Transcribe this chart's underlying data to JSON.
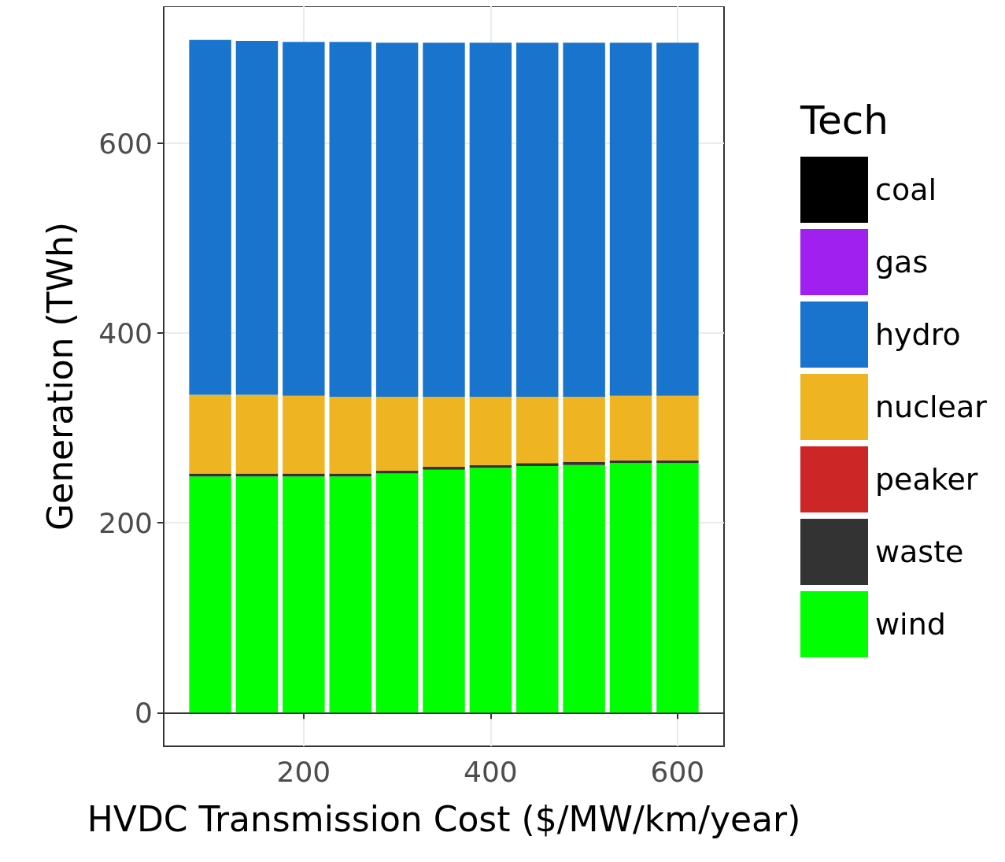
{
  "chart_data": {
    "type": "bar",
    "stacked": true,
    "xlabel": "HVDC Transmission Cost ($/MW/km/year)",
    "ylabel": "Generation (TWh)",
    "legend_title": "Tech",
    "x": [
      100,
      150,
      200,
      250,
      300,
      350,
      400,
      450,
      500,
      550,
      600
    ],
    "xlim": [
      50.25,
      649.75
    ],
    "xticks": [
      200,
      400,
      600
    ],
    "ylim": [
      -35.45,
      744.45
    ],
    "yticks": [
      0,
      200,
      400,
      600
    ],
    "grid": true,
    "legend": "right",
    "series": [
      {
        "name": "wind",
        "color": "#00ff00",
        "values": [
          249,
          249,
          249,
          249,
          252,
          256,
          258,
          260,
          261,
          263,
          263
        ]
      },
      {
        "name": "waste",
        "color": "#333333",
        "values": [
          3,
          3,
          3,
          3,
          3,
          3,
          3,
          3,
          3,
          3,
          3
        ]
      },
      {
        "name": "peaker",
        "color": "#cd2626",
        "values": [
          0,
          0,
          0,
          0,
          0,
          0,
          0,
          0,
          0,
          0,
          0
        ]
      },
      {
        "name": "nuclear",
        "color": "#eeb422",
        "values": [
          83,
          83,
          82,
          81,
          78,
          74,
          72,
          70,
          69,
          68,
          68
        ]
      },
      {
        "name": "hydro",
        "color": "#1874cd",
        "values": [
          374,
          373,
          373,
          374,
          373,
          373,
          373,
          373,
          373,
          372,
          372
        ]
      },
      {
        "name": "gas",
        "color": "#a020f0",
        "values": [
          0,
          0,
          0,
          0,
          0,
          0,
          0,
          0,
          0,
          0,
          0
        ]
      },
      {
        "name": "coal",
        "color": "#000000",
        "values": [
          0,
          0,
          0,
          0,
          0,
          0,
          0,
          0,
          0,
          0,
          0
        ]
      }
    ]
  }
}
